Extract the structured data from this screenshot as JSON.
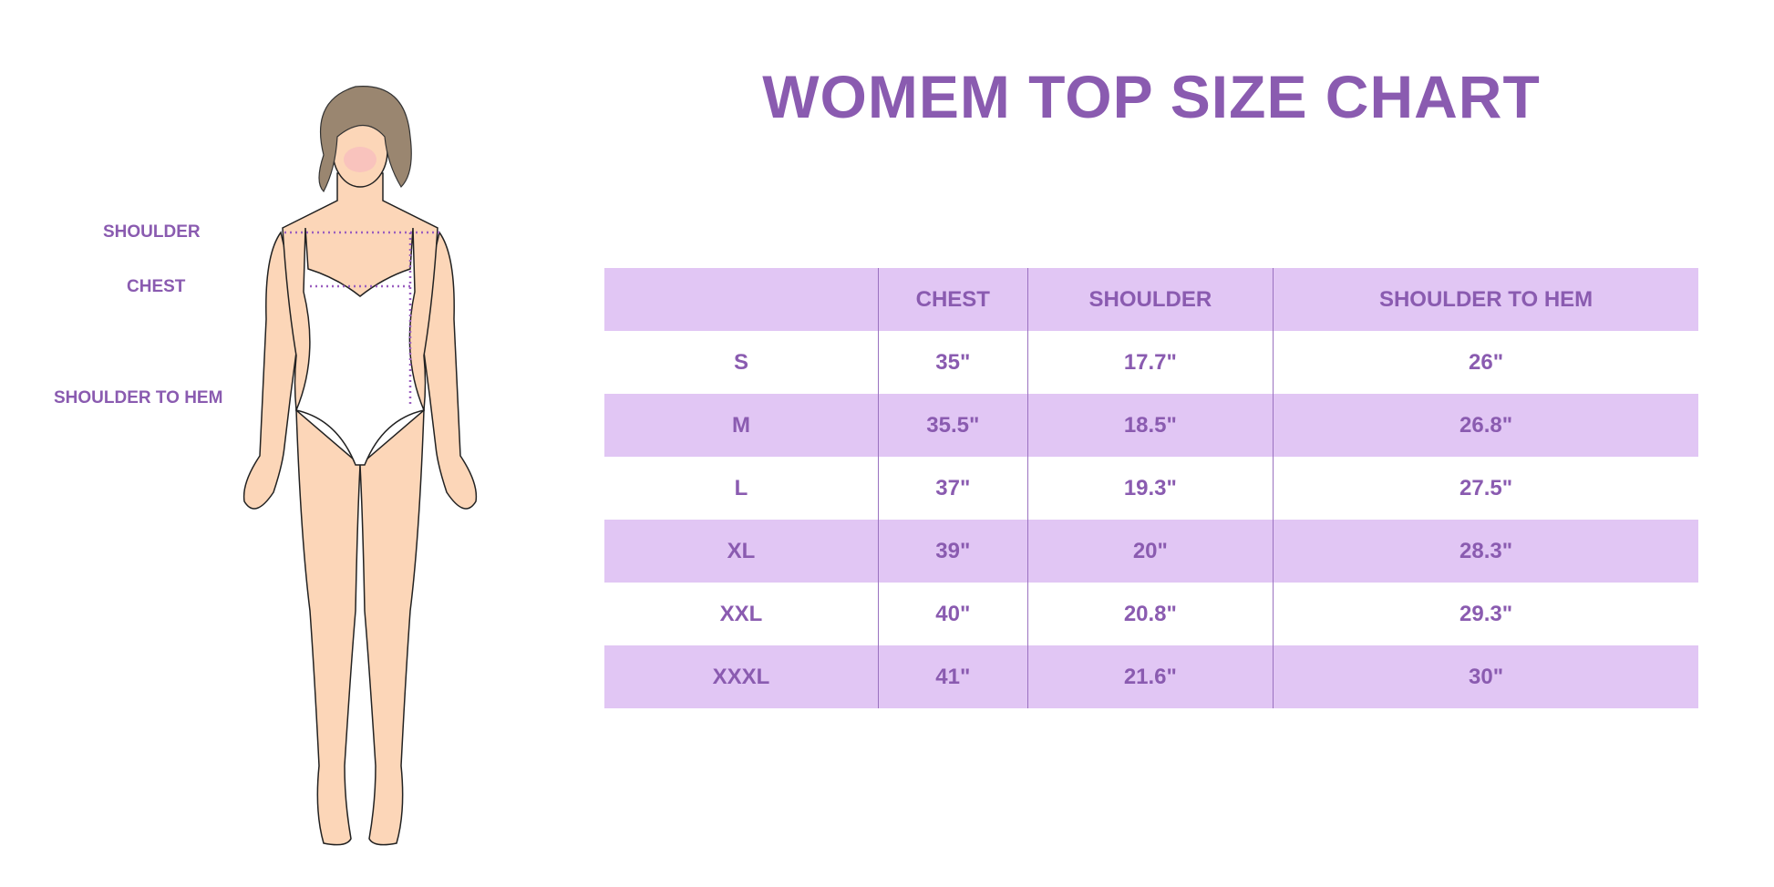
{
  "title": "WOMEM TOP SIZE CHART",
  "figure_labels": {
    "shoulder": "SHOULDER",
    "chest": "CHEST",
    "shoulder_to_hem": "SHOULDER TO HEM"
  },
  "colors": {
    "accent": "#8a5bb0",
    "row_fill": "#e1c6f4"
  },
  "table": {
    "headers": [
      "",
      "CHEST",
      "SHOULDER",
      "SHOULDER TO HEM"
    ],
    "rows": [
      [
        "S",
        "35\"",
        "17.7\"",
        "26\""
      ],
      [
        "M",
        "35.5\"",
        "18.5\"",
        "26.8\""
      ],
      [
        "L",
        "37\"",
        "19.3\"",
        "27.5\""
      ],
      [
        "XL",
        "39\"",
        "20\"",
        "28.3\""
      ],
      [
        "XXL",
        "40\"",
        "20.8\"",
        "29.3\""
      ],
      [
        "XXXL",
        "41\"",
        "21.6\"",
        "30\""
      ]
    ]
  }
}
